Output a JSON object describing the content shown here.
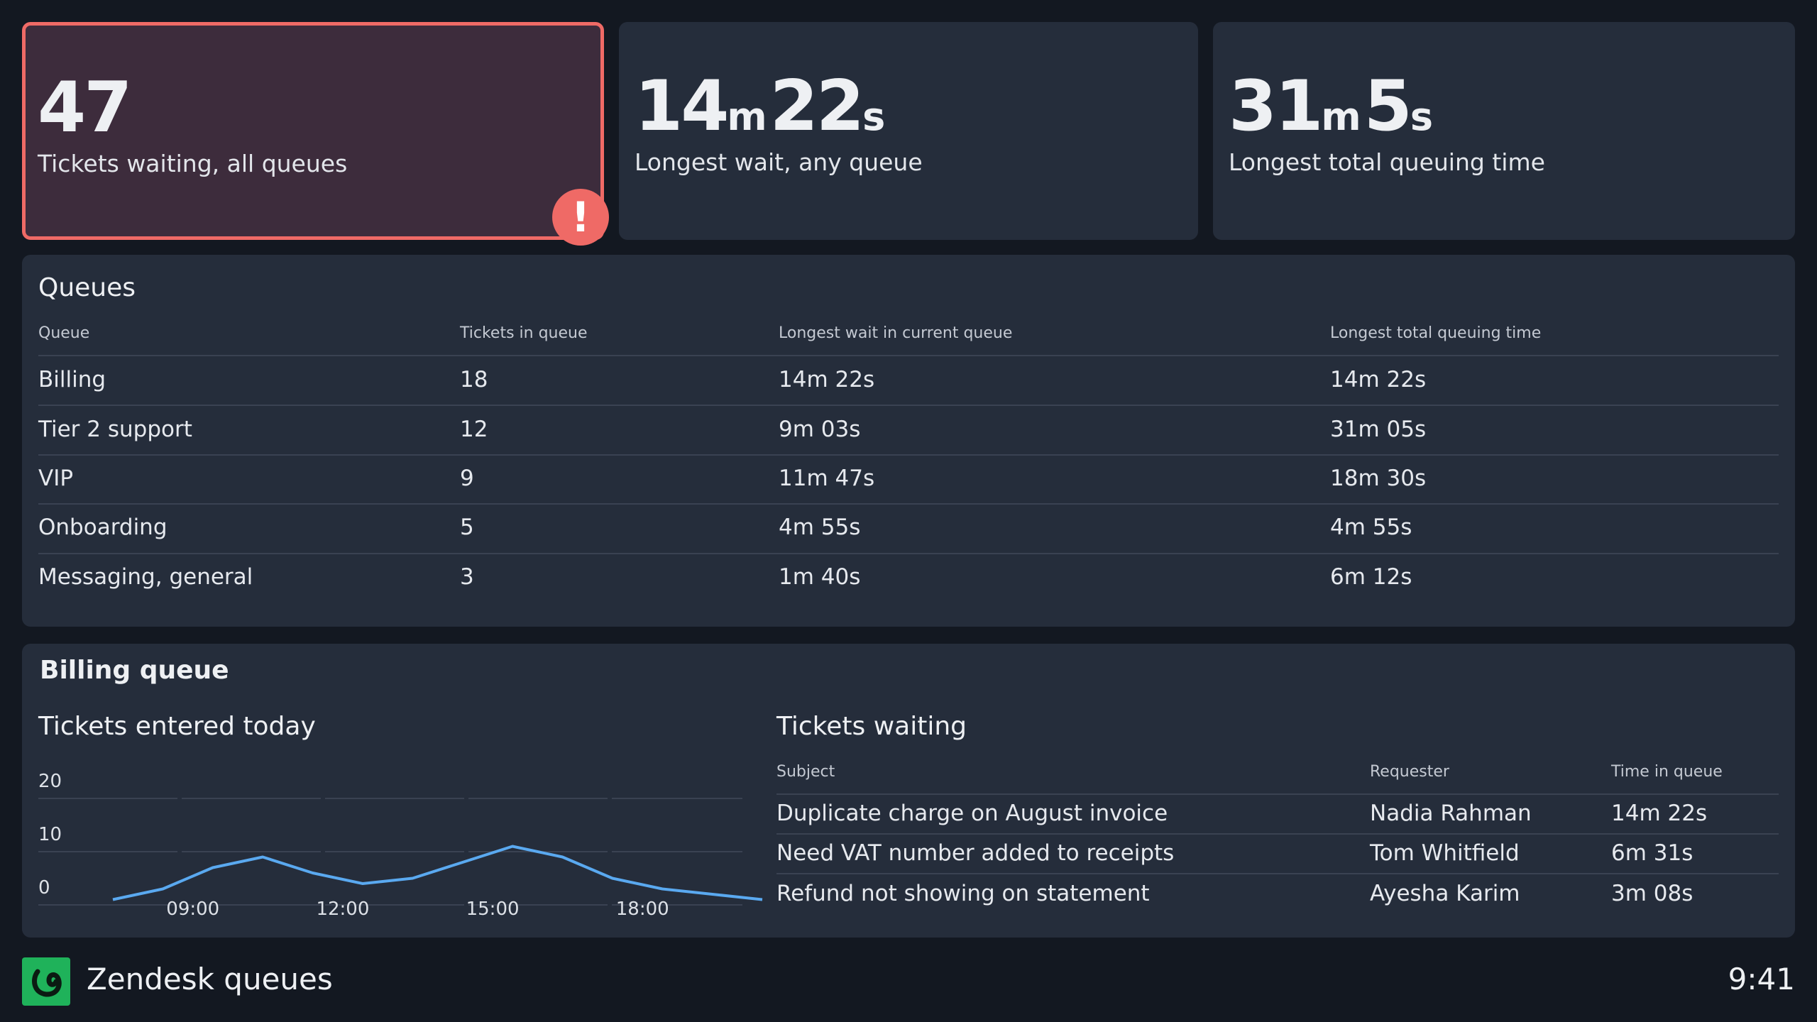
{
  "kpis": [
    {
      "value": "47",
      "unit1": "",
      "value2": "",
      "unit2": "",
      "label": "Tickets waiting, all queues",
      "alert": true,
      "alert_symbol": "!"
    },
    {
      "value": "14",
      "unit1": "m",
      "value2": "22",
      "unit2": "s",
      "label": "Longest wait, any queue"
    },
    {
      "value": "31",
      "unit1": "m",
      "value2": "5",
      "unit2": "s",
      "label": "Longest total queuing time"
    }
  ],
  "queues": {
    "title": "Queues",
    "columns": [
      "Queue",
      "Tickets in queue",
      "Longest wait in current queue",
      "Longest total queuing time"
    ],
    "rows": [
      [
        "Billing",
        "18",
        "14m 22s",
        "14m 22s"
      ],
      [
        "Tier 2 support",
        "12",
        "9m 03s",
        "31m 05s"
      ],
      [
        "VIP",
        "9",
        "11m 47s",
        "18m 30s"
      ],
      [
        "Onboarding",
        "5",
        "4m 55s",
        "4m 55s"
      ],
      [
        "Messaging, general",
        "3",
        "1m 40s",
        "6m 12s"
      ]
    ]
  },
  "billing": {
    "title": "Billing queue",
    "chart_title": "Tickets entered today",
    "waiting_title": "Tickets waiting",
    "waiting_columns": [
      "Subject",
      "Requester",
      "Time in queue"
    ],
    "waiting_rows": [
      [
        "Duplicate charge on August invoice",
        "Nadia Rahman",
        "14m 22s"
      ],
      [
        "Need VAT number added to receipts",
        "Tom Whitfield",
        "6m 31s"
      ],
      [
        "Refund not showing on statement",
        "Ayesha Karim",
        "3m 08s"
      ]
    ]
  },
  "chart_data": {
    "type": "line",
    "title": "Tickets entered today",
    "xlabel": "",
    "ylabel": "",
    "x": [
      "07:00",
      "08:00",
      "09:00",
      "10:00",
      "11:00",
      "12:00",
      "13:00",
      "14:00",
      "15:00",
      "16:00",
      "17:00",
      "18:00",
      "19:00",
      "20:00"
    ],
    "x_ticks": [
      "09:00",
      "12:00",
      "15:00",
      "18:00"
    ],
    "y_ticks": [
      "20",
      "10",
      "0"
    ],
    "ylim": [
      0,
      20
    ],
    "grid": true,
    "series": [
      {
        "values": [
          1,
          3,
          7,
          9,
          6,
          4,
          5,
          8,
          11,
          9,
          5,
          3,
          2,
          1
        ],
        "color": "#5aa9f0"
      }
    ]
  },
  "footer": {
    "app_title": "Zendesk queues",
    "clock": "9:41",
    "logo_icon": "zendesk-logo-icon"
  },
  "colors": {
    "background": "#131821",
    "panel": "#252d3b",
    "alert": "#ef6a66",
    "brand": "#1fb25a",
    "series": "#5aa9f0"
  }
}
